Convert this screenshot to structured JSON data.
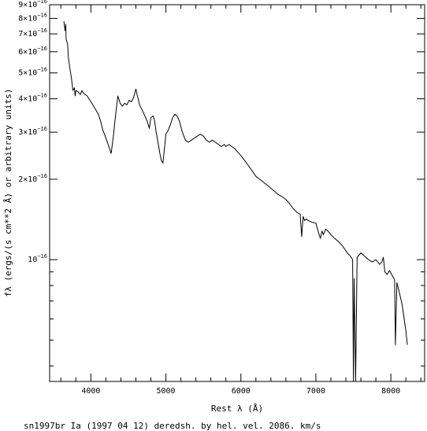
{
  "chart_data": {
    "type": "line",
    "title": "",
    "caption": "sn1997br Ia (1997 04 12) deredsh. by hel. vel.  2086. km/s",
    "xlabel": "Rest λ (Å)",
    "ylabel": "fλ (ergs/(s cm**2 Å) or arbitrary units)",
    "y_scale": "log",
    "xlim": [
      3450,
      8450
    ],
    "ylim": [
      3.5e-17,
      9e-16
    ],
    "grid": false,
    "x_ticks": [
      {
        "value": 4000,
        "label": "4000"
      },
      {
        "value": 5000,
        "label": "5000"
      },
      {
        "value": 6000,
        "label": "6000"
      },
      {
        "value": 7000,
        "label": "7000"
      },
      {
        "value": 8000,
        "label": "8000"
      }
    ],
    "y_ticks": [
      {
        "value": 1e-16,
        "mant": "10",
        "exp": "−16"
      },
      {
        "value": 2e-16,
        "mant": "2×10",
        "exp": "−16"
      },
      {
        "value": 3e-16,
        "mant": "3×10",
        "exp": "−16"
      },
      {
        "value": 4e-16,
        "mant": "4×10",
        "exp": "−16"
      },
      {
        "value": 5e-16,
        "mant": "5×10",
        "exp": "−16"
      },
      {
        "value": 6e-16,
        "mant": "6×10",
        "exp": "−16"
      },
      {
        "value": 7e-16,
        "mant": "7×10",
        "exp": "−16"
      },
      {
        "value": 8e-16,
        "mant": "8×10",
        "exp": "−16"
      },
      {
        "value": 9e-16,
        "mant": "9×10",
        "exp": "−16"
      }
    ],
    "series": [
      {
        "color": "#000000",
        "x": [
          3640,
          3655,
          3665,
          3670,
          3690,
          3700,
          3720,
          3740,
          3760,
          3780,
          3790,
          3800,
          3830,
          3860,
          3880,
          3900,
          3950,
          4000,
          4050,
          4100,
          4130,
          4160,
          4200,
          4240,
          4270,
          4300,
          4330,
          4360,
          4390,
          4420,
          4450,
          4480,
          4510,
          4540,
          4570,
          4600,
          4620,
          4650,
          4700,
          4750,
          4780,
          4800,
          4830,
          4850,
          4870,
          4900,
          4920,
          4940,
          4960,
          4980,
          5000,
          5030,
          5060,
          5090,
          5120,
          5150,
          5180,
          5220,
          5260,
          5300,
          5340,
          5380,
          5420,
          5460,
          5500,
          5540,
          5580,
          5620,
          5660,
          5700,
          5740,
          5780,
          5800,
          5840,
          5880,
          5920,
          6000,
          6050,
          6100,
          6150,
          6200,
          6250,
          6300,
          6350,
          6400,
          6450,
          6500,
          6550,
          6600,
          6650,
          6700,
          6750,
          6790,
          6810,
          6830,
          6850,
          6870,
          6900,
          6950,
          7000,
          7040,
          7060,
          7080,
          7100,
          7130,
          7160,
          7200,
          7250,
          7300,
          7350,
          7400,
          7430,
          7460,
          7490,
          7500,
          7510,
          7530,
          7550,
          7600,
          7650,
          7700,
          7750,
          7800,
          7850,
          7880,
          7900,
          7920,
          7950,
          7980,
          8000,
          8050,
          8060,
          8080,
          8100,
          8150,
          8200,
          8220
        ],
        "y": [
          7.8e-16,
          7.2e-16,
          7.6e-16,
          6.7e-16,
          6.4e-16,
          5.7e-16,
          5.2e-16,
          4.8e-16,
          4.3e-16,
          4.4e-16,
          4.1e-16,
          4.3e-16,
          4.25e-16,
          4.15e-16,
          4.3e-16,
          4.2e-16,
          4.1e-16,
          3.9e-16,
          3.7e-16,
          3.5e-16,
          3.3e-16,
          3.05e-16,
          2.85e-16,
          2.65e-16,
          2.5e-16,
          2.9e-16,
          3.5e-16,
          4.1e-16,
          3.85e-16,
          3.75e-16,
          3.85e-16,
          3.8e-16,
          3.95e-16,
          3.9e-16,
          4.05e-16,
          4.35e-16,
          4.1e-16,
          3.8e-16,
          3.55e-16,
          3.3e-16,
          3.1e-16,
          3.4e-16,
          3.45e-16,
          3.3e-16,
          3e-16,
          2.7e-16,
          2.5e-16,
          2.35e-16,
          2.3e-16,
          2.6e-16,
          2.95e-16,
          3.05e-16,
          3.2e-16,
          3.4e-16,
          3.5e-16,
          3.45e-16,
          3.3e-16,
          3e-16,
          2.8e-16,
          2.75e-16,
          2.8e-16,
          2.85e-16,
          2.9e-16,
          2.95e-16,
          2.9e-16,
          2.8e-16,
          2.75e-16,
          2.8e-16,
          2.75e-16,
          2.7e-16,
          2.65e-16,
          2.7e-16,
          2.65e-16,
          2.7e-16,
          2.65e-16,
          2.6e-16,
          2.45e-16,
          2.35e-16,
          2.25e-16,
          2.15e-16,
          2.05e-16,
          2e-16,
          1.95e-16,
          1.9e-16,
          1.85e-16,
          1.8e-16,
          1.75e-16,
          1.72e-16,
          1.68e-16,
          1.62e-16,
          1.55e-16,
          1.5e-16,
          1.48e-16,
          1.22e-16,
          1.45e-16,
          1.4e-16,
          1.42e-16,
          1.4e-16,
          1.38e-16,
          1.37e-16,
          1.25e-16,
          1.2e-16,
          1.28e-16,
          1.24e-16,
          1.3e-16,
          1.28e-16,
          1.24e-16,
          1.2e-16,
          1.17e-16,
          1.13e-16,
          1.08e-16,
          1.05e-16,
          1.03e-16,
          1e-16,
          3.5e-17,
          8.5e-17,
          3.5e-17,
          1.02e-16,
          1.06e-16,
          1.03e-16,
          1e-16,
          9.8e-17,
          1e-16,
          9.6e-17,
          9.8e-17,
          1.02e-16,
          9e-17,
          8.8e-17,
          9.1e-17,
          8.9e-17,
          8.4e-17,
          4.8e-17,
          8.2e-17,
          7.8e-17,
          6.8e-17,
          5.4e-17,
          4.8e-17
        ]
      }
    ]
  }
}
